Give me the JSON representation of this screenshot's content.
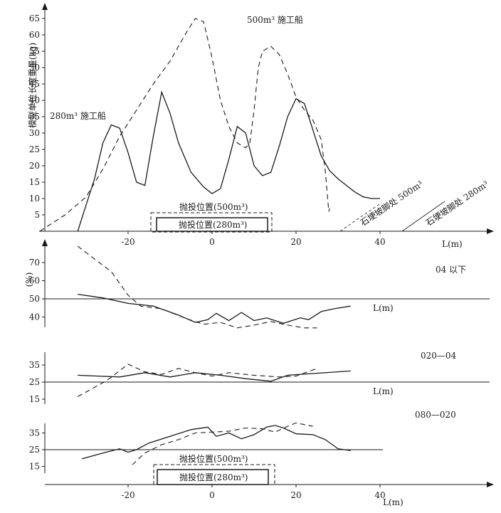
{
  "chart_data": [
    {
      "type": "line",
      "panel": "top",
      "ylabel": "模型单位长度重量(kg)",
      "xlabel": "L(m)",
      "xticks": [
        "-20",
        "0",
        "20",
        "40"
      ],
      "yticks": [
        "5",
        "10",
        "15",
        "20",
        "25",
        "30",
        "35",
        "40",
        "45",
        "50",
        "55",
        "60",
        "65"
      ],
      "xlim": [
        -41,
        68
      ],
      "ylim": [
        0,
        67
      ],
      "series": [
        {
          "name": "280m³ 施工船",
          "style": "solid",
          "x": [
            -32,
            -28,
            -26,
            -24,
            -22,
            -20,
            -18,
            -16,
            -14,
            -12,
            -10,
            -8,
            -5,
            -2,
            0,
            2,
            4,
            6,
            8,
            10,
            12,
            14,
            16,
            18,
            20,
            22,
            24,
            26,
            28,
            30,
            32,
            34,
            36,
            38,
            40
          ],
          "y": [
            0,
            16,
            27,
            32.5,
            31.5,
            24,
            15,
            14,
            29,
            42.5,
            36,
            27,
            18,
            13.5,
            11.5,
            13,
            22,
            32,
            30,
            20,
            17,
            18,
            26,
            35,
            40.5,
            39,
            31,
            23,
            18.5,
            16,
            14,
            12,
            10.5,
            10,
            10
          ]
        },
        {
          "name": "500m³ 施工船",
          "style": "dashed",
          "x": [
            -41,
            -35,
            -30,
            -26,
            -22,
            -18,
            -14,
            -10,
            -6,
            -4,
            -2,
            0,
            2,
            4,
            6,
            8,
            9,
            10,
            11,
            12,
            14,
            16,
            18,
            20,
            22,
            24,
            26,
            27,
            27.8,
            28
          ],
          "y": [
            0,
            5,
            10.5,
            19,
            29,
            37,
            45,
            52,
            61,
            65,
            64,
            53,
            40,
            32,
            27,
            25.5,
            27,
            37,
            50,
            55,
            56.5,
            54,
            48,
            41,
            37,
            34,
            28,
            18,
            6,
            7
          ]
        }
      ],
      "annotations": [
        "280m³ 施工船",
        "500m³ 施工船",
        "抛投位置(500m³)",
        "抛投位置(280m³)",
        "石埂坡脚处 500m³",
        "石埂坡脚处 280m³"
      ]
    },
    {
      "type": "line",
      "panel": "04 以下",
      "ylabel": "(%)",
      "xlabel": "L(m)",
      "yticks": [
        "40",
        "50",
        "60",
        "70"
      ],
      "series": [
        {
          "style": "solid",
          "x": [
            -32,
            -26,
            -20,
            -14,
            -8,
            -4,
            -1,
            1,
            4,
            7,
            10,
            13,
            17,
            21,
            23,
            26,
            29,
            33
          ],
          "y": [
            52.5,
            50.5,
            47.5,
            46,
            41,
            37,
            38.5,
            42,
            38,
            42.5,
            38,
            39.5,
            36.5,
            39.5,
            38.5,
            43,
            44.5,
            46
          ]
        },
        {
          "style": "dashed",
          "x": [
            -32,
            -28,
            -24,
            -20,
            -17,
            -12,
            -6,
            -2,
            2,
            6,
            10,
            14,
            18,
            22,
            25
          ],
          "y": [
            79,
            72,
            65,
            52,
            46,
            44.5,
            39,
            36,
            37,
            34,
            35.5,
            37.5,
            35.5,
            34,
            34
          ]
        }
      ]
    },
    {
      "type": "line",
      "panel": "020—04",
      "xlabel": "L(m)",
      "yticks": [
        "15",
        "25",
        "35"
      ],
      "series": [
        {
          "style": "solid",
          "x": [
            -32,
            -22,
            -16,
            -10,
            -4,
            2,
            8,
            14,
            18,
            24,
            33
          ],
          "y": [
            29,
            28,
            30.5,
            28,
            30.5,
            29,
            27,
            25.5,
            29,
            30,
            31.5
          ]
        },
        {
          "style": "dashed",
          "x": [
            -32,
            -25,
            -20,
            -16,
            -12,
            -8,
            -4,
            0,
            4,
            10,
            16,
            20,
            25
          ],
          "y": [
            16.5,
            26,
            35.5,
            31,
            29.5,
            33,
            30.5,
            28.5,
            30.5,
            29,
            28,
            28.5,
            33
          ]
        }
      ]
    },
    {
      "type": "line",
      "panel": "080—020",
      "xlabel": "L(m)",
      "xticks": [
        "-20",
        "0",
        "20",
        "40"
      ],
      "yticks": [
        "15",
        "25",
        "35"
      ],
      "series": [
        {
          "style": "solid",
          "x": [
            -31,
            -26,
            -22,
            -20,
            -18,
            -15,
            -10,
            -5,
            -1,
            1,
            4,
            7,
            10,
            13,
            15,
            17,
            20,
            24,
            27,
            30,
            33
          ],
          "y": [
            19.5,
            23,
            25.5,
            23.5,
            25,
            29,
            33,
            37,
            38.5,
            33,
            35,
            31.5,
            34,
            38.5,
            39.5,
            38,
            34.5,
            34,
            31,
            25.5,
            24.5
          ]
        },
        {
          "style": "dashed",
          "x": [
            -19,
            -16,
            -12,
            -8,
            -4,
            0,
            4,
            8,
            12,
            15,
            18,
            20,
            24
          ],
          "y": [
            16,
            23,
            28,
            31,
            35,
            35.5,
            36,
            38,
            37.5,
            35.5,
            39,
            41,
            39
          ]
        }
      ],
      "annotations": [
        "抛投位置(500m³)",
        "抛投位置(280m³)"
      ]
    }
  ]
}
